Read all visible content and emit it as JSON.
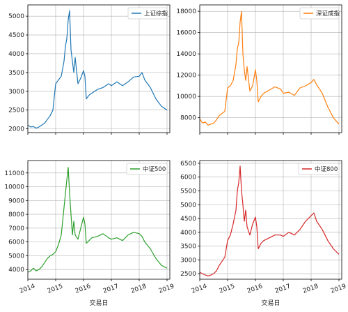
{
  "chart_data": [
    {
      "type": "line",
      "legend": "上证综指",
      "color": "#1f77b4",
      "legend_loc": "upper right",
      "grid": true,
      "xlabel": "",
      "x_range": [
        2014.0,
        2019.1
      ],
      "x_ticks": [
        2014,
        2015,
        2016,
        2017,
        2018,
        2019
      ],
      "x_tick_labels": [
        "",
        "",
        "",
        "",
        "",
        ""
      ],
      "y_range": [
        1900,
        5300
      ],
      "y_ticks": [
        2000,
        2500,
        3000,
        3500,
        4000,
        4500,
        5000
      ],
      "y_tick_labels": [
        "2000",
        "2500",
        "3000",
        "3500",
        "4000",
        "4500",
        "5000"
      ],
      "x": [
        2014.0,
        2014.1,
        2014.2,
        2014.3,
        2014.4,
        2014.5,
        2014.6,
        2014.7,
        2014.8,
        2014.9,
        2015.0,
        2015.1,
        2015.2,
        2015.3,
        2015.35,
        2015.4,
        2015.45,
        2015.5,
        2015.55,
        2015.6,
        2015.65,
        2015.7,
        2015.8,
        2015.9,
        2016.0,
        2016.05,
        2016.1,
        2016.2,
        2016.3,
        2016.5,
        2016.7,
        2016.9,
        2017.0,
        2017.2,
        2017.4,
        2017.6,
        2017.8,
        2018.0,
        2018.1,
        2018.2,
        2018.4,
        2018.6,
        2018.8,
        2019.0
      ],
      "y": [
        2100,
        2050,
        2060,
        2020,
        2050,
        2100,
        2150,
        2250,
        2350,
        2500,
        3200,
        3300,
        3400,
        3800,
        4200,
        4400,
        4900,
        5150,
        4100,
        3800,
        3500,
        3900,
        3200,
        3350,
        3550,
        3400,
        2800,
        2900,
        2950,
        3050,
        3100,
        3200,
        3150,
        3250,
        3150,
        3250,
        3380,
        3400,
        3500,
        3300,
        3100,
        2800,
        2600,
        2500
      ]
    },
    {
      "type": "line",
      "legend": "深证成指",
      "color": "#ff7f0e",
      "legend_loc": "upper right",
      "grid": true,
      "xlabel": "",
      "x_range": [
        2014.0,
        2019.1
      ],
      "x_ticks": [
        2014,
        2015,
        2016,
        2017,
        2018,
        2019
      ],
      "x_tick_labels": [
        "",
        "",
        "",
        "",
        "",
        ""
      ],
      "y_range": [
        6600,
        18600
      ],
      "y_ticks": [
        8000,
        10000,
        12000,
        14000,
        16000,
        18000
      ],
      "y_tick_labels": [
        "8000",
        "10000",
        "12000",
        "14000",
        "16000",
        "18000"
      ],
      "x": [
        2014.0,
        2014.1,
        2014.2,
        2014.3,
        2014.4,
        2014.5,
        2014.6,
        2014.7,
        2014.8,
        2014.9,
        2015.0,
        2015.1,
        2015.2,
        2015.3,
        2015.35,
        2015.4,
        2015.45,
        2015.5,
        2015.55,
        2015.6,
        2015.65,
        2015.7,
        2015.8,
        2015.9,
        2016.0,
        2016.05,
        2016.1,
        2016.2,
        2016.3,
        2016.5,
        2016.7,
        2016.9,
        2017.0,
        2017.2,
        2017.4,
        2017.6,
        2017.8,
        2018.0,
        2018.1,
        2018.2,
        2018.4,
        2018.6,
        2018.8,
        2019.0
      ],
      "y": [
        7900,
        7500,
        7600,
        7300,
        7400,
        7500,
        7800,
        8200,
        8400,
        8600,
        10800,
        11000,
        11500,
        13000,
        14500,
        15000,
        17000,
        18000,
        14000,
        12500,
        11500,
        12800,
        10500,
        11000,
        12500,
        11500,
        9500,
        10000,
        10300,
        10600,
        10900,
        10700,
        10300,
        10400,
        10100,
        10800,
        11000,
        11300,
        11600,
        11100,
        10300,
        9000,
        8000,
        7400
      ]
    },
    {
      "type": "line",
      "legend": "中证500",
      "color": "#2ca02c",
      "legend_loc": "upper right",
      "grid": true,
      "xlabel": "交易日",
      "x_range": [
        2014.0,
        2019.1
      ],
      "x_ticks": [
        2014,
        2015,
        2016,
        2017,
        2018,
        2019
      ],
      "x_tick_labels": [
        "2014",
        "2015",
        "2016",
        "2017",
        "2018",
        "2019"
      ],
      "y_range": [
        3300,
        11900
      ],
      "y_ticks": [
        4000,
        5000,
        6000,
        7000,
        8000,
        9000,
        10000,
        11000
      ],
      "y_tick_labels": [
        "4000",
        "5000",
        "6000",
        "7000",
        "8000",
        "9000",
        "10000",
        "11000"
      ],
      "x": [
        2014.0,
        2014.1,
        2014.2,
        2014.3,
        2014.4,
        2014.5,
        2014.6,
        2014.7,
        2014.8,
        2014.9,
        2015.0,
        2015.1,
        2015.2,
        2015.3,
        2015.35,
        2015.4,
        2015.45,
        2015.5,
        2015.55,
        2015.6,
        2015.65,
        2015.7,
        2015.8,
        2015.9,
        2016.0,
        2016.05,
        2016.1,
        2016.2,
        2016.3,
        2016.5,
        2016.7,
        2016.9,
        2017.0,
        2017.2,
        2017.4,
        2017.6,
        2017.8,
        2018.0,
        2018.1,
        2018.2,
        2018.4,
        2018.6,
        2018.8,
        2019.0
      ],
      "y": [
        3800,
        3900,
        4100,
        3900,
        4000,
        4200,
        4500,
        4800,
        5000,
        5100,
        5300,
        5800,
        6500,
        8500,
        9500,
        10500,
        11400,
        9500,
        8000,
        6500,
        7500,
        6500,
        6200,
        7000,
        7800,
        7300,
        5900,
        6100,
        6300,
        6400,
        6600,
        6300,
        6200,
        6300,
        6100,
        6500,
        6700,
        6600,
        6400,
        6000,
        5500,
        4800,
        4300,
        4100
      ]
    },
    {
      "type": "line",
      "legend": "中证800",
      "color": "#d62728",
      "legend_loc": "upper right",
      "grid": true,
      "xlabel": "交易日",
      "x_range": [
        2014.0,
        2019.1
      ],
      "x_ticks": [
        2014,
        2015,
        2016,
        2017,
        2018,
        2019
      ],
      "x_tick_labels": [
        "2014",
        "2015",
        "2016",
        "2017",
        "2018",
        "2019"
      ],
      "y_range": [
        2300,
        6600
      ],
      "y_ticks": [
        2500,
        3000,
        3500,
        4000,
        4500,
        5000,
        5500,
        6000,
        6500
      ],
      "y_tick_labels": [
        "2500",
        "3000",
        "3500",
        "4000",
        "4500",
        "5000",
        "5500",
        "6000",
        "6500"
      ],
      "x": [
        2014.0,
        2014.1,
        2014.2,
        2014.3,
        2014.4,
        2014.5,
        2014.6,
        2014.7,
        2014.8,
        2014.9,
        2015.0,
        2015.1,
        2015.2,
        2015.3,
        2015.35,
        2015.4,
        2015.45,
        2015.5,
        2015.55,
        2015.6,
        2015.65,
        2015.7,
        2015.8,
        2015.9,
        2016.0,
        2016.05,
        2016.1,
        2016.2,
        2016.3,
        2016.5,
        2016.7,
        2016.9,
        2017.0,
        2017.2,
        2017.4,
        2017.6,
        2017.8,
        2018.0,
        2018.1,
        2018.2,
        2018.4,
        2018.6,
        2018.8,
        2019.0
      ],
      "y": [
        2550,
        2500,
        2450,
        2420,
        2450,
        2500,
        2600,
        2800,
        2950,
        3100,
        3700,
        3900,
        4300,
        4800,
        5500,
        5800,
        6400,
        5500,
        5000,
        4400,
        4800,
        4200,
        3900,
        4300,
        4550,
        4200,
        3400,
        3600,
        3700,
        3800,
        3900,
        3900,
        3850,
        4000,
        3900,
        4100,
        4400,
        4600,
        4700,
        4400,
        4100,
        3700,
        3400,
        3200
      ]
    }
  ]
}
